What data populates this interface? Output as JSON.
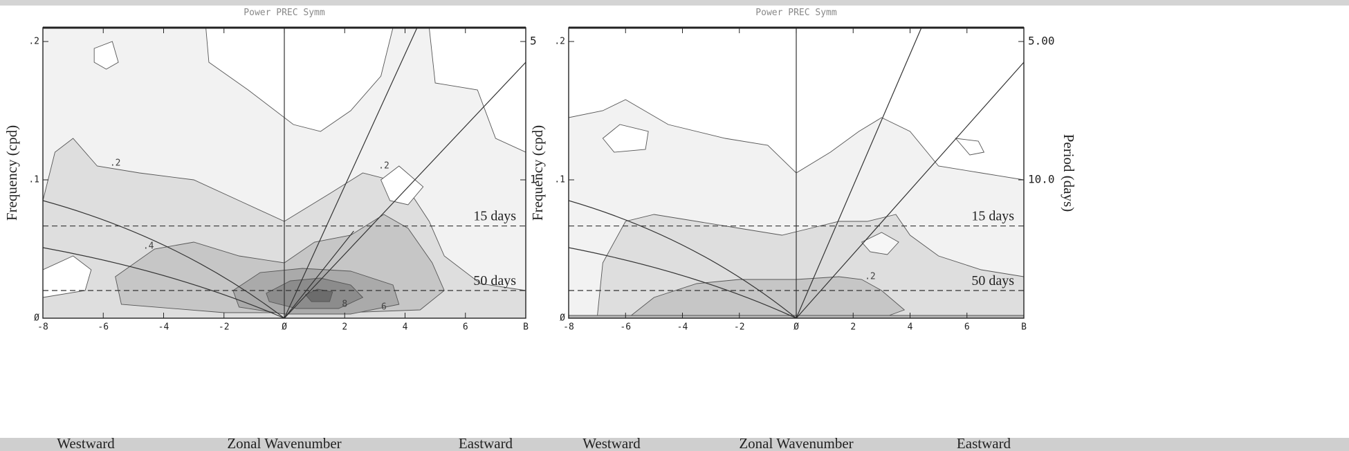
{
  "chart_data": [
    {
      "type": "contour",
      "title": "Power PREC Symm",
      "x_label": "Zonal Wavenumber",
      "x_label_left": "Westward",
      "x_label_right": "Eastward",
      "y_label": "Frequency (cpd)",
      "xlim": [
        -8,
        8
      ],
      "xticks": [
        -8,
        -6,
        -4,
        -2,
        {
          "value": 0,
          "label": "Ø"
        },
        2,
        4,
        6,
        {
          "value": 8,
          "label": "B"
        }
      ],
      "ylim": [
        0,
        0.21
      ],
      "yticks": [
        {
          "value": 0,
          "label": "Ø"
        },
        {
          "value": 0.1,
          "label": ".1"
        },
        {
          "value": 0.2,
          "label": ".2"
        }
      ],
      "y2scale": "reciprocal",
      "y2ticks": [
        5,
        {
          "value": 10,
          "label": "1"
        }
      ],
      "reference_lines": [
        {
          "value": 15,
          "label": "15 days"
        },
        {
          "value": 50,
          "label": "50 days"
        }
      ],
      "contour_labels": [
        ".2",
        ".2",
        ".4",
        "6",
        "8"
      ]
    },
    {
      "type": "contour",
      "title": "Power PREC Symm",
      "x_label": "Zonal Wavenumber",
      "x_label_left": "Westward",
      "x_label_right": "Eastward",
      "y_label": "Frequency (cpd)",
      "y2_label": "Period (days)",
      "xlim": [
        -8,
        8
      ],
      "xticks": [
        -8,
        -6,
        -4,
        -2,
        {
          "value": 0,
          "label": "Ø"
        },
        2,
        4,
        6,
        {
          "value": 8,
          "label": "B"
        }
      ],
      "ylim": [
        0,
        0.21
      ],
      "yticks": [
        {
          "value": 0,
          "label": "Ø"
        },
        {
          "value": 0.1,
          "label": ".1"
        },
        {
          "value": 0.2,
          "label": ".2"
        }
      ],
      "y2scale": "reciprocal",
      "y2ticks": [
        {
          "value": 5,
          "label": "5.00"
        },
        {
          "value": 10,
          "label": "10.0"
        }
      ],
      "reference_lines": [
        {
          "value": 15,
          "label": "15 days"
        },
        {
          "value": 50,
          "label": "50 days"
        }
      ],
      "contour_labels": [
        ".2"
      ]
    }
  ]
}
